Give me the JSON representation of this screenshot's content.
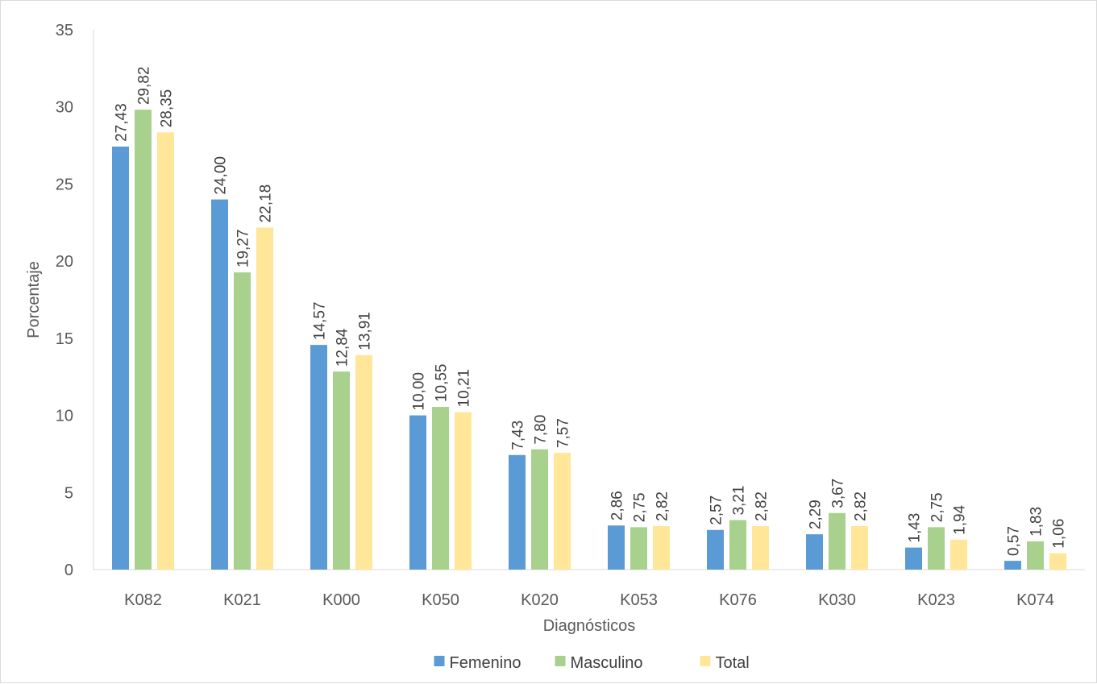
{
  "chart_data": {
    "type": "bar",
    "title": "",
    "xlabel": "Diagnósticos",
    "ylabel": "Porcentaje",
    "ylim": [
      0,
      35
    ],
    "ytick_step": 5,
    "yticks": [
      "0",
      "5",
      "10",
      "15",
      "20",
      "25",
      "30",
      "35"
    ],
    "grid": false,
    "legend_position": "bottom",
    "categories": [
      "K082",
      "K021",
      "K000",
      "K050",
      "K020",
      "K053",
      "K076",
      "K030",
      "K023",
      "K074"
    ],
    "series": [
      {
        "name": "Femenino",
        "color": "#5b9bd5",
        "values": [
          27.43,
          24.0,
          14.57,
          10.0,
          7.43,
          2.86,
          2.57,
          2.29,
          1.43,
          0.57
        ],
        "labels": [
          "27,43",
          "24,00",
          "14,57",
          "10,00",
          "7,43",
          "2,86",
          "2,57",
          "2,29",
          "1,43",
          "0,57"
        ]
      },
      {
        "name": "Masculino",
        "color": "#a9d18e",
        "values": [
          29.82,
          19.27,
          12.84,
          10.55,
          7.8,
          2.75,
          3.21,
          3.67,
          2.75,
          1.83
        ],
        "labels": [
          "29,82",
          "19,27",
          "12,84",
          "10,55",
          "7,80",
          "2,75",
          "3,21",
          "3,67",
          "2,75",
          "1,83"
        ]
      },
      {
        "name": "Total",
        "color": "#ffe699",
        "values": [
          28.35,
          22.18,
          13.91,
          10.21,
          7.57,
          2.82,
          2.82,
          2.82,
          1.94,
          1.06
        ],
        "labels": [
          "28,35",
          "22,18",
          "13,91",
          "10,21",
          "7,57",
          "2,82",
          "2,82",
          "2,82",
          "1,94",
          "1,06"
        ]
      }
    ]
  }
}
